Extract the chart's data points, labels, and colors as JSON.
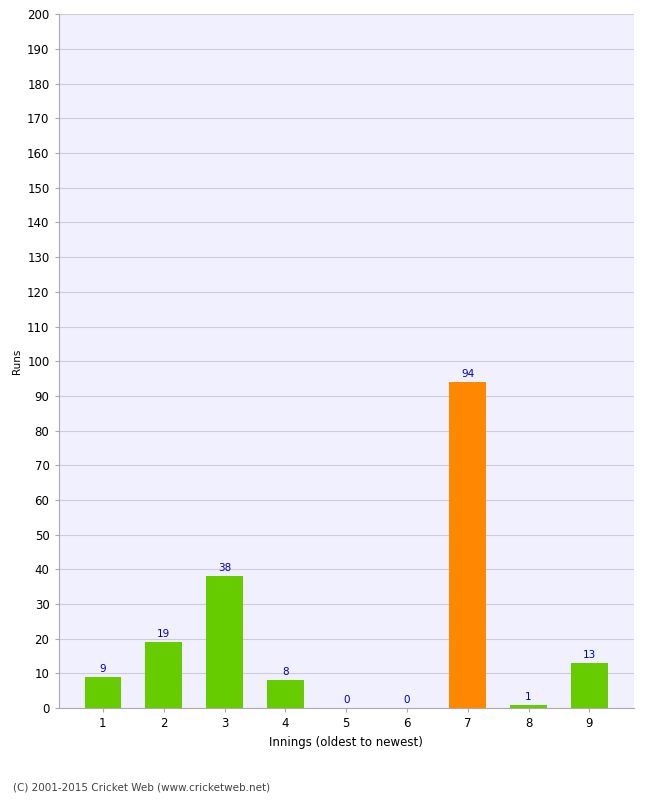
{
  "categories": [
    "1",
    "2",
    "3",
    "4",
    "5",
    "6",
    "7",
    "8",
    "9"
  ],
  "values": [
    9,
    19,
    38,
    8,
    0,
    0,
    94,
    1,
    13
  ],
  "bar_colors": [
    "#66cc00",
    "#66cc00",
    "#66cc00",
    "#66cc00",
    "#66cc00",
    "#66cc00",
    "#ff8800",
    "#66cc00",
    "#66cc00"
  ],
  "xlabel": "Innings (oldest to newest)",
  "ylabel": "Runs",
  "ylim": [
    0,
    200
  ],
  "yticks": [
    0,
    10,
    20,
    30,
    40,
    50,
    60,
    70,
    80,
    90,
    100,
    110,
    120,
    130,
    140,
    150,
    160,
    170,
    180,
    190,
    200
  ],
  "label_color": "#0000bb",
  "label_fontsize": 7.5,
  "xlabel_fontsize": 8.5,
  "ylabel_fontsize": 7.5,
  "tick_fontsize": 8.5,
  "background_color": "#ffffff",
  "plot_bg_color": "#f0f0ff",
  "grid_color": "#ccccdd",
  "footer_text": "(C) 2001-2015 Cricket Web (www.cricketweb.net)",
  "footer_fontsize": 7.5,
  "footer_color": "#444444",
  "spine_color": "#aaaaaa"
}
